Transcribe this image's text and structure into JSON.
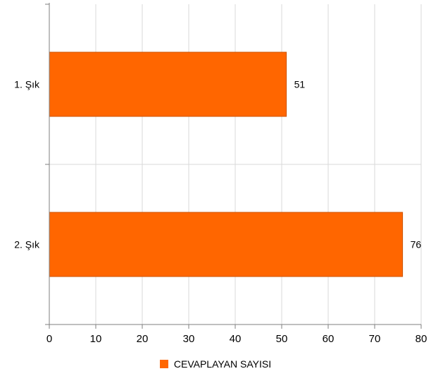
{
  "chart_data": {
    "type": "bar",
    "orientation": "horizontal",
    "categories": [
      "1. Şık",
      "2. Şık"
    ],
    "series": [
      {
        "name": "CEVAPLAYAN SAYISI",
        "values": [
          51,
          76
        ],
        "color": "#ff6600"
      }
    ],
    "xlim": [
      0,
      80
    ],
    "xticks": [
      0,
      10,
      20,
      30,
      40,
      50,
      60,
      70,
      80
    ],
    "grid": true,
    "data_labels": true,
    "legend_position": "bottom"
  }
}
